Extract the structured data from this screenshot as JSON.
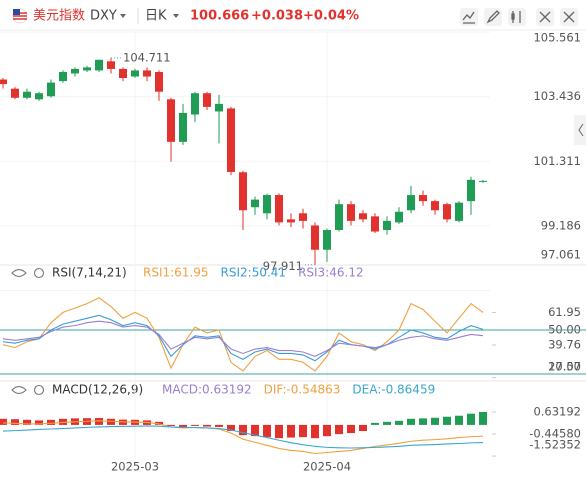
{
  "header": {
    "name": "美元指数",
    "symbol": "DXY",
    "period": "日K",
    "change": "+0.038",
    "change_pct": "+0.04%"
  },
  "chart_data": [
    {
      "type": "candlestick",
      "up_color": "#1f9d55",
      "down_color": "#e2322d",
      "grid": true,
      "categories": [
        null,
        null,
        null,
        null,
        null,
        null,
        null,
        null,
        null,
        null,
        null,
        "2025-03",
        null,
        null,
        null,
        null,
        null,
        null,
        null,
        null,
        null,
        null,
        null,
        null,
        null,
        null,
        null,
        "2025-04",
        null,
        null,
        null,
        null,
        null,
        null,
        null,
        null,
        null,
        null,
        null,
        null,
        null
      ],
      "open": [
        104.0,
        103.7,
        103.4,
        103.35,
        103.45,
        103.95,
        104.2,
        104.3,
        104.3,
        104.6,
        104.35,
        104.1,
        104.3,
        104.25,
        103.35,
        101.95,
        102.85,
        103.55,
        102.95,
        103.05,
        100.95,
        99.8,
        99.6,
        100.2,
        99.4,
        99.6,
        99.2,
        98.4,
        99.05,
        99.9,
        99.6,
        99.5,
        99.05,
        99.3,
        99.7,
        100.2,
        100.0,
        99.9,
        99.35,
        100.0,
        100.64
      ],
      "high": [
        104.05,
        103.75,
        103.7,
        103.6,
        104.0,
        104.3,
        104.4,
        104.45,
        104.65,
        104.711,
        104.4,
        104.35,
        104.4,
        104.3,
        103.4,
        103.2,
        103.6,
        103.6,
        103.5,
        103.1,
        101.0,
        100.15,
        100.25,
        100.25,
        99.6,
        99.75,
        99.3,
        99.1,
        100.05,
        100.0,
        99.7,
        99.6,
        99.5,
        99.8,
        100.5,
        100.35,
        100.05,
        99.95,
        100.0,
        100.8,
        100.7
      ],
      "low": [
        103.7,
        103.35,
        103.35,
        103.3,
        103.4,
        103.9,
        104.1,
        104.25,
        104.25,
        104.2,
        103.95,
        104.05,
        103.95,
        103.3,
        101.3,
        101.85,
        102.6,
        103.0,
        101.9,
        100.85,
        99.05,
        99.55,
        99.4,
        99.2,
        99.15,
        99.1,
        97.911,
        98.0,
        99.0,
        99.2,
        99.3,
        98.95,
        98.9,
        99.25,
        99.6,
        99.85,
        99.55,
        99.3,
        99.3,
        99.55,
        100.6
      ],
      "close": [
        103.85,
        103.4,
        103.6,
        103.55,
        103.9,
        104.25,
        104.35,
        104.4,
        104.65,
        104.35,
        104.05,
        104.3,
        104.1,
        103.6,
        101.95,
        102.9,
        103.55,
        103.1,
        103.2,
        100.96,
        99.7,
        100.05,
        100.2,
        99.3,
        99.3,
        99.35,
        98.4,
        99.05,
        99.9,
        99.35,
        99.4,
        99.0,
        99.35,
        99.65,
        100.2,
        100.0,
        99.7,
        99.4,
        99.95,
        100.7,
        100.666
      ],
      "ylim": [
        97.8,
        105.63
      ],
      "yticks": [
        105.561,
        103.436,
        101.311,
        99.186,
        97.061
      ]
    },
    {
      "type": "line",
      "title": "RSI(7,14,21)",
      "ylim": [
        15.9,
        80.7
      ],
      "yticks": [
        61.95,
        {
          "value": 50,
          "label": "50.00"
        },
        39.76,
        17.57,
        {
          "value": 20,
          "label": "20.00"
        }
      ],
      "ref_lines": [
        50,
        20
      ],
      "ref_color": "#3aa6a0",
      "series": [
        {
          "name": "RSI1:61.95",
          "color": "#f0a040",
          "values": [
            40,
            38,
            42,
            44,
            55,
            62,
            65,
            68,
            72,
            66,
            58,
            62,
            58,
            45,
            24,
            40,
            52,
            48,
            50,
            28,
            22,
            32,
            36,
            30,
            30,
            28,
            22,
            32,
            48,
            42,
            40,
            36,
            42,
            50,
            68,
            64,
            56,
            48,
            58,
            68,
            61.95
          ]
        },
        {
          "name": "RSI2:50.41",
          "color": "#3a9bdc",
          "values": [
            42,
            41,
            43,
            44,
            50,
            54,
            56,
            58,
            60,
            57,
            53,
            55,
            53,
            46,
            32,
            40,
            46,
            45,
            46,
            34,
            30,
            35,
            37,
            34,
            34,
            33,
            29,
            35,
            43,
            40,
            39,
            37,
            40,
            45,
            50,
            48,
            45,
            44,
            49,
            53,
            50.41
          ]
        },
        {
          "name": "RSI3:46.12",
          "color": "#9b7fd1",
          "values": [
            44,
            43,
            44,
            45,
            49,
            52,
            53,
            55,
            56,
            55,
            52,
            53,
            52,
            47,
            37,
            41,
            45,
            44,
            45,
            37,
            34,
            37,
            38,
            36,
            36,
            35,
            32,
            36,
            41,
            40,
            39,
            38,
            40,
            43,
            45,
            46,
            44,
            43,
            45,
            47,
            46.12
          ]
        }
      ]
    },
    {
      "type": "macd",
      "title": "MACD(12,26,9)",
      "ylim": [
        -1.62,
        1.22
      ],
      "yticks": [
        0.63192,
        {
          "value": -0.4458,
          "label": "-0.44580"
        },
        -1.52352
      ],
      "histogram": {
        "name": "MACD:0.63192",
        "color": "#9b7fd1",
        "values": [
          0.3,
          0.28,
          0.25,
          0.22,
          0.25,
          0.3,
          0.32,
          0.33,
          0.34,
          0.3,
          0.26,
          0.25,
          0.22,
          0.15,
          -0.05,
          -0.1,
          -0.05,
          -0.08,
          -0.1,
          -0.3,
          -0.5,
          -0.55,
          -0.6,
          -0.65,
          -0.62,
          -0.6,
          -0.65,
          -0.55,
          -0.45,
          -0.4,
          -0.3,
          0.1,
          0.15,
          0.2,
          0.3,
          0.32,
          0.35,
          0.4,
          0.45,
          0.55,
          0.63192
        ],
        "colors": [
          "#e2322d",
          "#e2322d",
          "#e2322d",
          "#e2322d",
          "#e2322d",
          "#e2322d",
          "#e2322d",
          "#e2322d",
          "#e2322d",
          "#e2322d",
          "#e2322d",
          "#e2322d",
          "#e2322d",
          "#e2322d",
          "#e2322d",
          "#e2322d",
          "#e2322d",
          "#e2322d",
          "#e2322d",
          "#e2322d",
          "#e2322d",
          "#e2322d",
          "#e2322d",
          "#e2322d",
          "#e2322d",
          "#e2322d",
          "#e2322d",
          "#e2322d",
          "#e2322d",
          "#e2322d",
          "#e2322d",
          "#1f9d55",
          "#1f9d55",
          "#1f9d55",
          "#1f9d55",
          "#1f9d55",
          "#1f9d55",
          "#1f9d55",
          "#1f9d55",
          "#1f9d55",
          "#1f9d55"
        ]
      },
      "series": [
        {
          "name": "DIF:-0.54863",
          "color": "#f0a040",
          "values": [
            0.1,
            0.08,
            0.05,
            0.05,
            0.08,
            0.12,
            0.15,
            0.18,
            0.2,
            0.18,
            0.15,
            0.14,
            0.12,
            0.05,
            -0.1,
            -0.15,
            -0.12,
            -0.15,
            -0.2,
            -0.4,
            -0.7,
            -0.85,
            -1.0,
            -1.15,
            -1.25,
            -1.3,
            -1.4,
            -1.35,
            -1.3,
            -1.25,
            -1.15,
            -1.05,
            -0.98,
            -0.9,
            -0.8,
            -0.75,
            -0.72,
            -0.68,
            -0.62,
            -0.58,
            -0.54863
          ]
        },
        {
          "name": "DEA:-0.86459",
          "color": "#3aa6d0",
          "values": [
            -0.3,
            -0.28,
            -0.25,
            -0.22,
            -0.2,
            -0.18,
            -0.15,
            -0.12,
            -0.1,
            -0.08,
            -0.07,
            -0.06,
            -0.05,
            -0.06,
            -0.1,
            -0.12,
            -0.13,
            -0.15,
            -0.18,
            -0.25,
            -0.38,
            -0.5,
            -0.62,
            -0.75,
            -0.87,
            -0.97,
            -1.05,
            -1.1,
            -1.12,
            -1.13,
            -1.12,
            -1.1,
            -1.08,
            -1.05,
            -1.0,
            -0.98,
            -0.96,
            -0.93,
            -0.91,
            -0.88,
            -0.86459
          ]
        }
      ]
    }
  ]
}
